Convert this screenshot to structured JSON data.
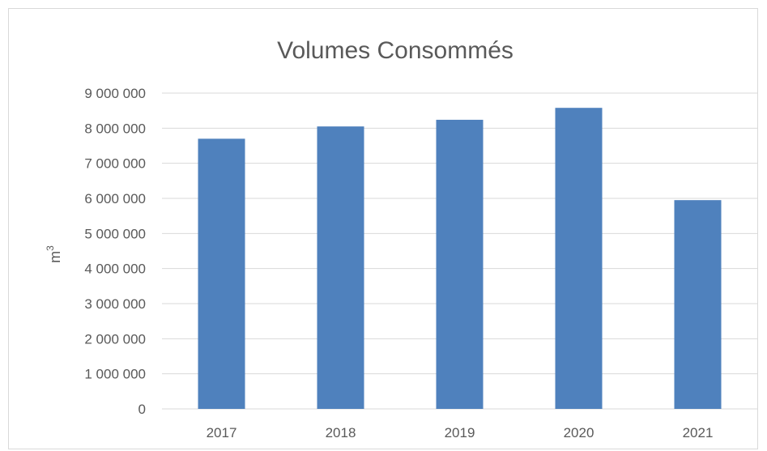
{
  "chart_data": {
    "type": "bar",
    "title": "Volumes Consommés",
    "ylabel": "m",
    "ylabel_superscript": "3",
    "xlabel": "",
    "categories": [
      "2017",
      "2018",
      "2019",
      "2020",
      "2021"
    ],
    "values": [
      7700000,
      8050000,
      8240000,
      8580000,
      5950000
    ],
    "ylim": [
      0,
      9000000
    ],
    "yticks": [
      0,
      1000000,
      2000000,
      3000000,
      4000000,
      5000000,
      6000000,
      7000000,
      8000000,
      9000000
    ],
    "ytick_labels": [
      "0",
      "1 000 000",
      "2 000 000",
      "3 000 000",
      "4 000 000",
      "5 000 000",
      "6 000 000",
      "7 000 000",
      "8 000 000",
      "9 000 000"
    ],
    "grid": true,
    "legend": "none",
    "bar_color": "#4f81bd",
    "gridline_color": "#d9d9d9"
  }
}
